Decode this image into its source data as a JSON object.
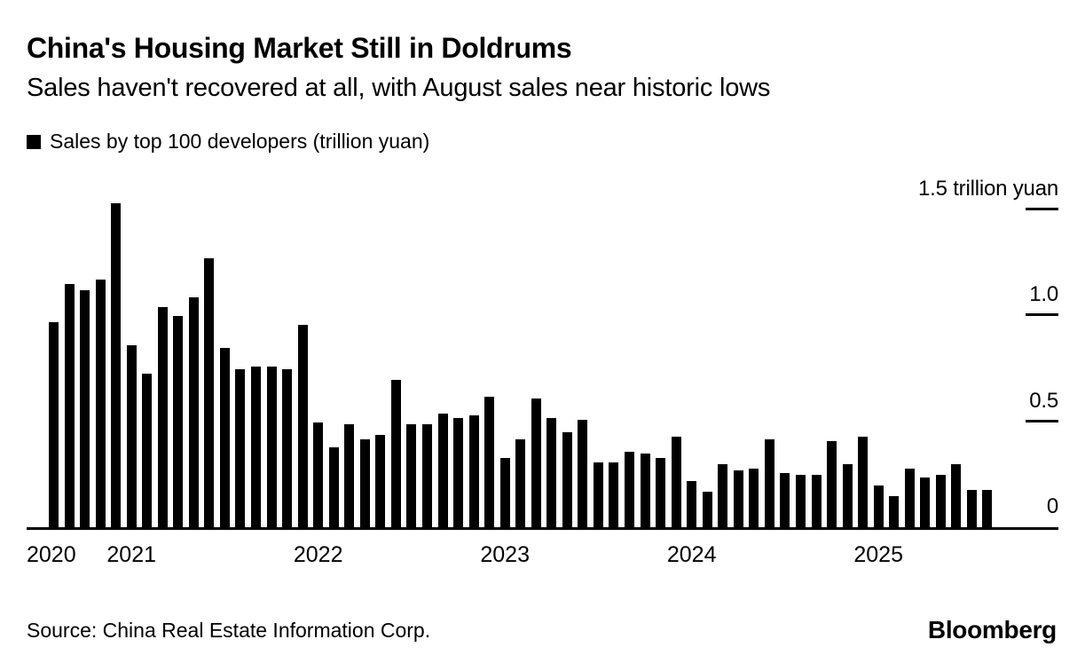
{
  "header": {
    "title": "China's Housing Market Still in Doldrums",
    "subtitle": "Sales haven't recovered at all, with August sales near historic lows"
  },
  "legend": {
    "label": "Sales by top 100 developers (trillion yuan)",
    "swatch_color": "#000000"
  },
  "chart_data": {
    "type": "bar",
    "title": "China's Housing Market Still in Doldrums",
    "subtitle": "Sales haven't recovered at all, with August sales near historic lows",
    "series_name": "Sales by top 100 developers (trillion yuan)",
    "bar_color": "#000000",
    "ylabel": "trillion yuan",
    "ylim": [
      0,
      1.6
    ],
    "grid": "right-side tick dashes only",
    "legend_position": "top-left",
    "yticks": [
      {
        "value": 1.5,
        "label": "1.5 trillion yuan"
      },
      {
        "value": 1.0,
        "label": "1.0"
      },
      {
        "value": 0.5,
        "label": "0.5"
      },
      {
        "value": 0,
        "label": "0"
      }
    ],
    "x_year_labels": [
      "2020",
      "2021",
      "2022",
      "2023",
      "2024",
      "2025"
    ],
    "months": [
      "2020-08",
      "2020-09",
      "2020-10",
      "2020-11",
      "2020-12",
      "2021-01",
      "2021-02",
      "2021-03",
      "2021-04",
      "2021-05",
      "2021-06",
      "2021-07",
      "2021-08",
      "2021-09",
      "2021-10",
      "2021-11",
      "2021-12",
      "2022-01",
      "2022-02",
      "2022-03",
      "2022-04",
      "2022-05",
      "2022-06",
      "2022-07",
      "2022-08",
      "2022-09",
      "2022-10",
      "2022-11",
      "2022-12",
      "2023-01",
      "2023-02",
      "2023-03",
      "2023-04",
      "2023-05",
      "2023-06",
      "2023-07",
      "2023-08",
      "2023-09",
      "2023-10",
      "2023-11",
      "2023-12",
      "2024-01",
      "2024-02",
      "2024-03",
      "2024-04",
      "2024-05",
      "2024-06",
      "2024-07",
      "2024-08",
      "2024-09",
      "2024-10",
      "2024-11",
      "2024-12",
      "2025-01",
      "2025-02",
      "2025-03",
      "2025-04",
      "2025-05",
      "2025-06",
      "2025-07",
      "2025-08"
    ],
    "values": [
      0.97,
      1.15,
      1.12,
      1.17,
      1.53,
      0.86,
      0.73,
      1.04,
      1.0,
      1.09,
      1.27,
      0.85,
      0.75,
      0.76,
      0.76,
      0.75,
      0.96,
      0.5,
      0.38,
      0.49,
      0.42,
      0.44,
      0.7,
      0.49,
      0.49,
      0.54,
      0.52,
      0.53,
      0.62,
      0.33,
      0.42,
      0.61,
      0.52,
      0.45,
      0.51,
      0.31,
      0.31,
      0.36,
      0.35,
      0.33,
      0.43,
      0.22,
      0.17,
      0.3,
      0.27,
      0.28,
      0.42,
      0.26,
      0.25,
      0.25,
      0.41,
      0.3,
      0.43,
      0.2,
      0.15,
      0.28,
      0.24,
      0.25,
      0.3,
      0.18,
      0.18
    ]
  },
  "footer": {
    "source": "Source: China Real Estate Information Corp.",
    "brand": "Bloomberg"
  }
}
